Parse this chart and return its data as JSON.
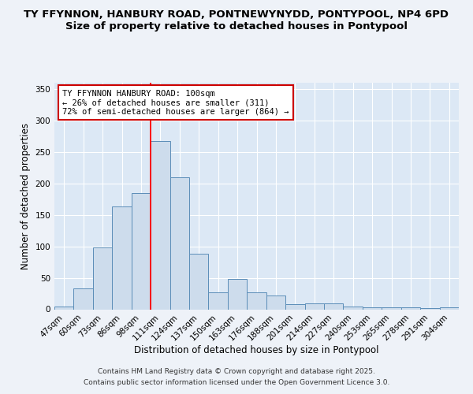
{
  "title_line1": "TY FFYNNON, HANBURY ROAD, PONTNEWYNYDD, PONTYPOOL, NP4 6PD",
  "title_line2": "Size of property relative to detached houses in Pontypool",
  "xlabel": "Distribution of detached houses by size in Pontypool",
  "ylabel": "Number of detached properties",
  "categories": [
    "47sqm",
    "60sqm",
    "73sqm",
    "86sqm",
    "98sqm",
    "111sqm",
    "124sqm",
    "137sqm",
    "150sqm",
    "163sqm",
    "176sqm",
    "188sqm",
    "201sqm",
    "214sqm",
    "227sqm",
    "240sqm",
    "253sqm",
    "265sqm",
    "278sqm",
    "291sqm",
    "304sqm"
  ],
  "values": [
    5,
    33,
    98,
    163,
    185,
    267,
    210,
    88,
    27,
    48,
    27,
    22,
    8,
    9,
    9,
    4,
    3,
    3,
    3,
    2,
    3
  ],
  "bar_color": "#cddcec",
  "bar_edge_color": "#5b8db8",
  "red_line_index": 4,
  "annotation_text": "TY FFYNNON HANBURY ROAD: 100sqm\n← 26% of detached houses are smaller (311)\n72% of semi-detached houses are larger (864) →",
  "annotation_box_color": "#ffffff",
  "annotation_box_edge": "#cc0000",
  "ylim": [
    0,
    360
  ],
  "yticks": [
    0,
    50,
    100,
    150,
    200,
    250,
    300,
    350
  ],
  "footer_line1": "Contains HM Land Registry data © Crown copyright and database right 2025.",
  "footer_line2": "Contains public sector information licensed under the Open Government Licence 3.0.",
  "bg_color": "#eef2f8",
  "plot_bg_color": "#dce8f5",
  "grid_color": "#ffffff",
  "title_fontsize": 9.5,
  "tick_fontsize": 7.5,
  "label_fontsize": 8.5,
  "footer_fontsize": 6.5,
  "annot_fontsize": 7.5
}
